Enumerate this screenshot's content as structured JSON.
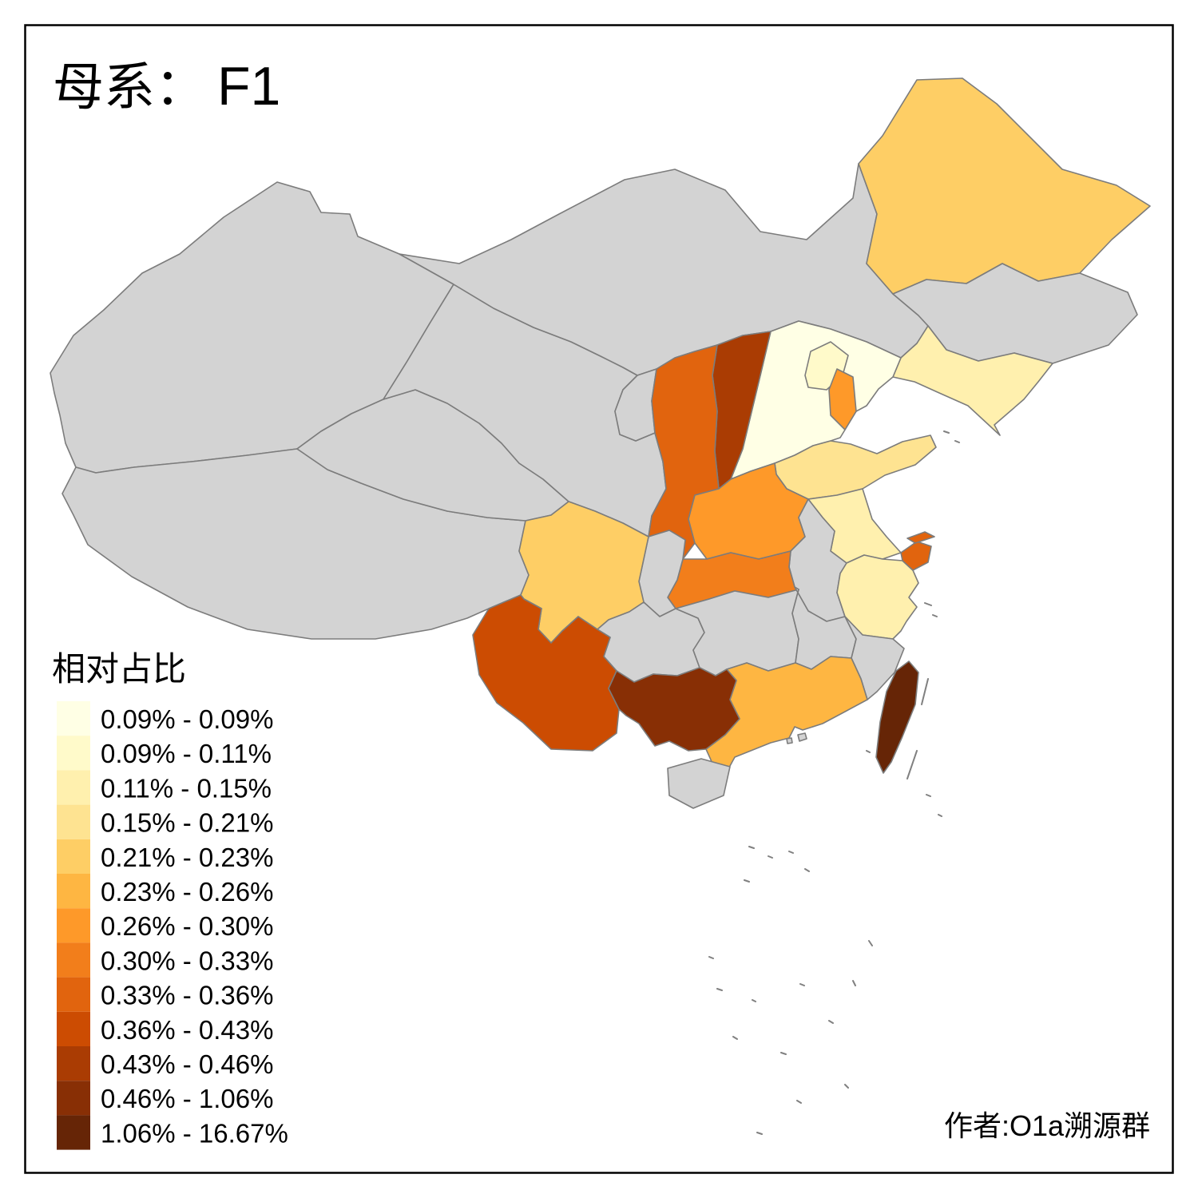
{
  "title": {
    "prefix": "母系：",
    "value": "F1"
  },
  "legend": {
    "title": "相对占比"
  },
  "credit": "作者:O1a溯源群",
  "chart_data": {
    "type": "choropleth-map",
    "title": "母系： F1",
    "legend_title": "相对占比",
    "no_data_color": "#D3D3D3",
    "border_color": "#7C7C7C",
    "background_color": "#FFFFFF",
    "classes": [
      {
        "label": "0.09% - 0.09%",
        "color": "#FFFFE5"
      },
      {
        "label": "0.09% - 0.11%",
        "color": "#FFFACA"
      },
      {
        "label": "0.11% - 0.15%",
        "color": "#FFF0AE"
      },
      {
        "label": "0.15% - 0.21%",
        "color": "#FEE391"
      },
      {
        "label": "0.21% - 0.23%",
        "color": "#FECE65"
      },
      {
        "label": "0.23% - 0.26%",
        "color": "#FEB642"
      },
      {
        "label": "0.26% - 0.30%",
        "color": "#FE9929"
      },
      {
        "label": "0.30% - 0.33%",
        "color": "#F27E1B"
      },
      {
        "label": "0.33% - 0.36%",
        "color": "#E1640E"
      },
      {
        "label": "0.36% - 0.43%",
        "color": "#CC4C02"
      },
      {
        "label": "0.43% - 0.46%",
        "color": "#AA3C03"
      },
      {
        "label": "0.46% - 1.06%",
        "color": "#882F05"
      },
      {
        "label": "1.06% - 16.67%",
        "color": "#662506"
      }
    ],
    "regions": {
      "xinjiang": 0,
      "tibet": 0,
      "qinghai": 0,
      "gansu": 0,
      "ningxia": 0,
      "inner-mongolia": 0,
      "jilin": 0,
      "anhui": 0,
      "chongqing": 0,
      "guizhou": 0,
      "hunan": 0,
      "jiangxi": 0,
      "fujian": 0,
      "hainan": 0,
      "hong-kong": 0,
      "macau": 0,
      "hebei": 1,
      "beijing": 2,
      "liaoning": 3,
      "jiangsu": 3,
      "zhejiang": 3,
      "shandong": 4,
      "sichuan": 5,
      "heilongjiang": 5,
      "guangdong": 6,
      "tianjin": 7,
      "henan": 7,
      "hubei": 8,
      "shaanxi": 9,
      "shanghai": 9,
      "yunnan": 10,
      "shanxi": 11,
      "guangxi": 12,
      "taiwan": 13
    }
  }
}
